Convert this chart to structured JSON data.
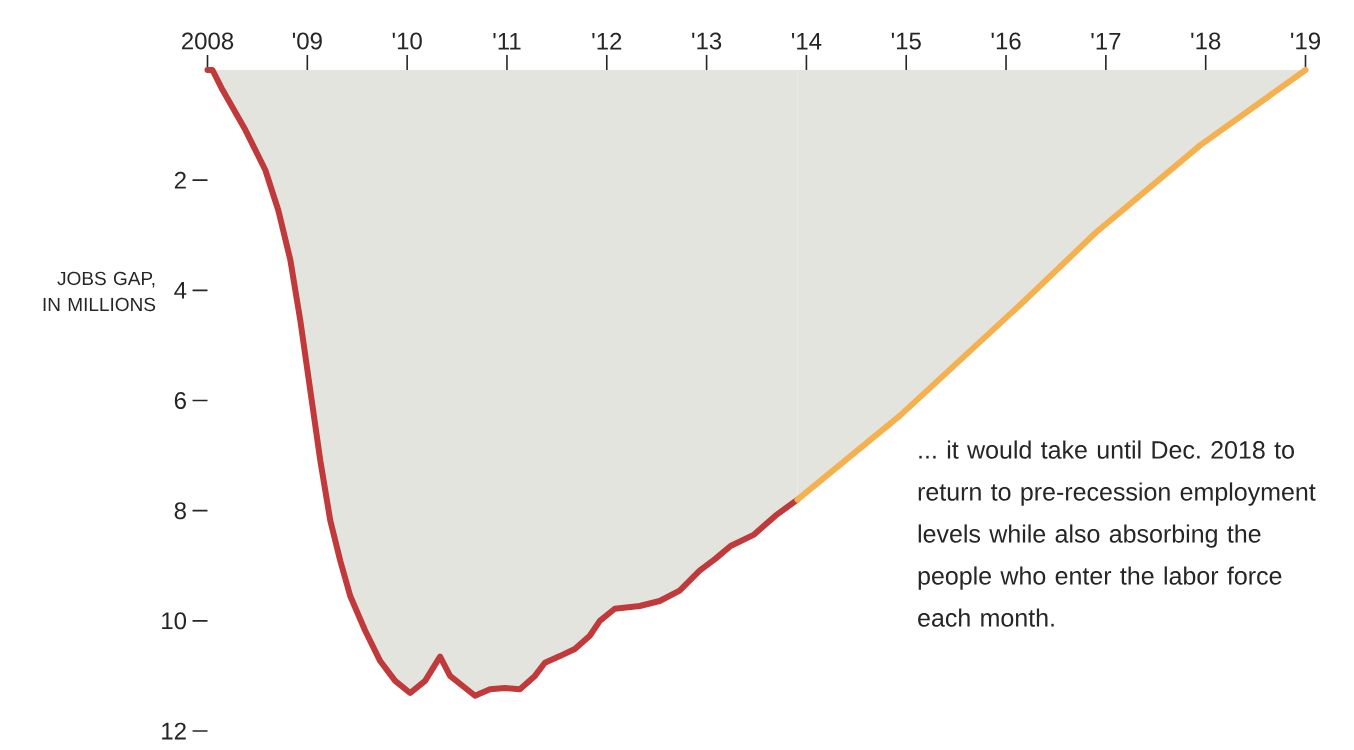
{
  "chart_data": {
    "type": "area",
    "ylabel": "JOBS GAP, IN MILLIONS",
    "xlim": [
      2008,
      2019
    ],
    "ylim": [
      12,
      0
    ],
    "xticks": [
      {
        "value": 2008,
        "label": "2008"
      },
      {
        "value": 2009,
        "label": "'09"
      },
      {
        "value": 2010,
        "label": "'10"
      },
      {
        "value": 2011,
        "label": "'11"
      },
      {
        "value": 2012,
        "label": "'12"
      },
      {
        "value": 2013,
        "label": "'13"
      },
      {
        "value": 2014,
        "label": "'14"
      },
      {
        "value": 2015,
        "label": "'15"
      },
      {
        "value": 2016,
        "label": "'16"
      },
      {
        "value": 2017,
        "label": "'17"
      },
      {
        "value": 2018,
        "label": "'18"
      },
      {
        "value": 2019,
        "label": "'19"
      }
    ],
    "yticks": [
      2,
      4,
      6,
      8,
      10,
      12
    ],
    "grid": false,
    "marker": "none",
    "line_style": "solid",
    "series": [
      {
        "color": "#c0393b",
        "x": [
          2008.0,
          2008.05,
          2008.15,
          2008.38,
          2008.58,
          2008.71,
          2008.83,
          2008.93,
          2009.03,
          2009.13,
          2009.23,
          2009.33,
          2009.43,
          2009.58,
          2009.73,
          2009.88,
          2010.03,
          2010.18,
          2010.33,
          2010.43,
          2010.68,
          2010.83,
          2010.98,
          2011.13,
          2011.28,
          2011.38,
          2011.53,
          2011.68,
          2011.83,
          2011.93,
          2012.08,
          2012.33,
          2012.53,
          2012.73,
          2012.93,
          2013.09,
          2013.24,
          2013.47,
          2013.69,
          2013.91
        ],
        "values": [
          0,
          0,
          0.36,
          1.09,
          1.82,
          2.55,
          3.45,
          4.55,
          5.82,
          7.09,
          8.18,
          8.91,
          9.55,
          10.18,
          10.73,
          11.09,
          11.31,
          11.09,
          10.65,
          11.0,
          11.36,
          11.24,
          11.22,
          11.24,
          11.0,
          10.76,
          10.64,
          10.51,
          10.27,
          10.0,
          9.78,
          9.73,
          9.64,
          9.45,
          9.09,
          8.87,
          8.64,
          8.44,
          8.09,
          7.8
        ]
      },
      {
        "color": "#f5b050",
        "x": [
          2013.91,
          2014.94,
          2016.19,
          2016.9,
          2017.95,
          2019.0
        ],
        "values": [
          7.8,
          6.27,
          4.18,
          2.95,
          1.36,
          0
        ]
      }
    ],
    "annotations": [
      "... it would take until Dec. 2018 to return to pre-recession employment levels while also absorbing the people who enter the labor force each month."
    ]
  }
}
